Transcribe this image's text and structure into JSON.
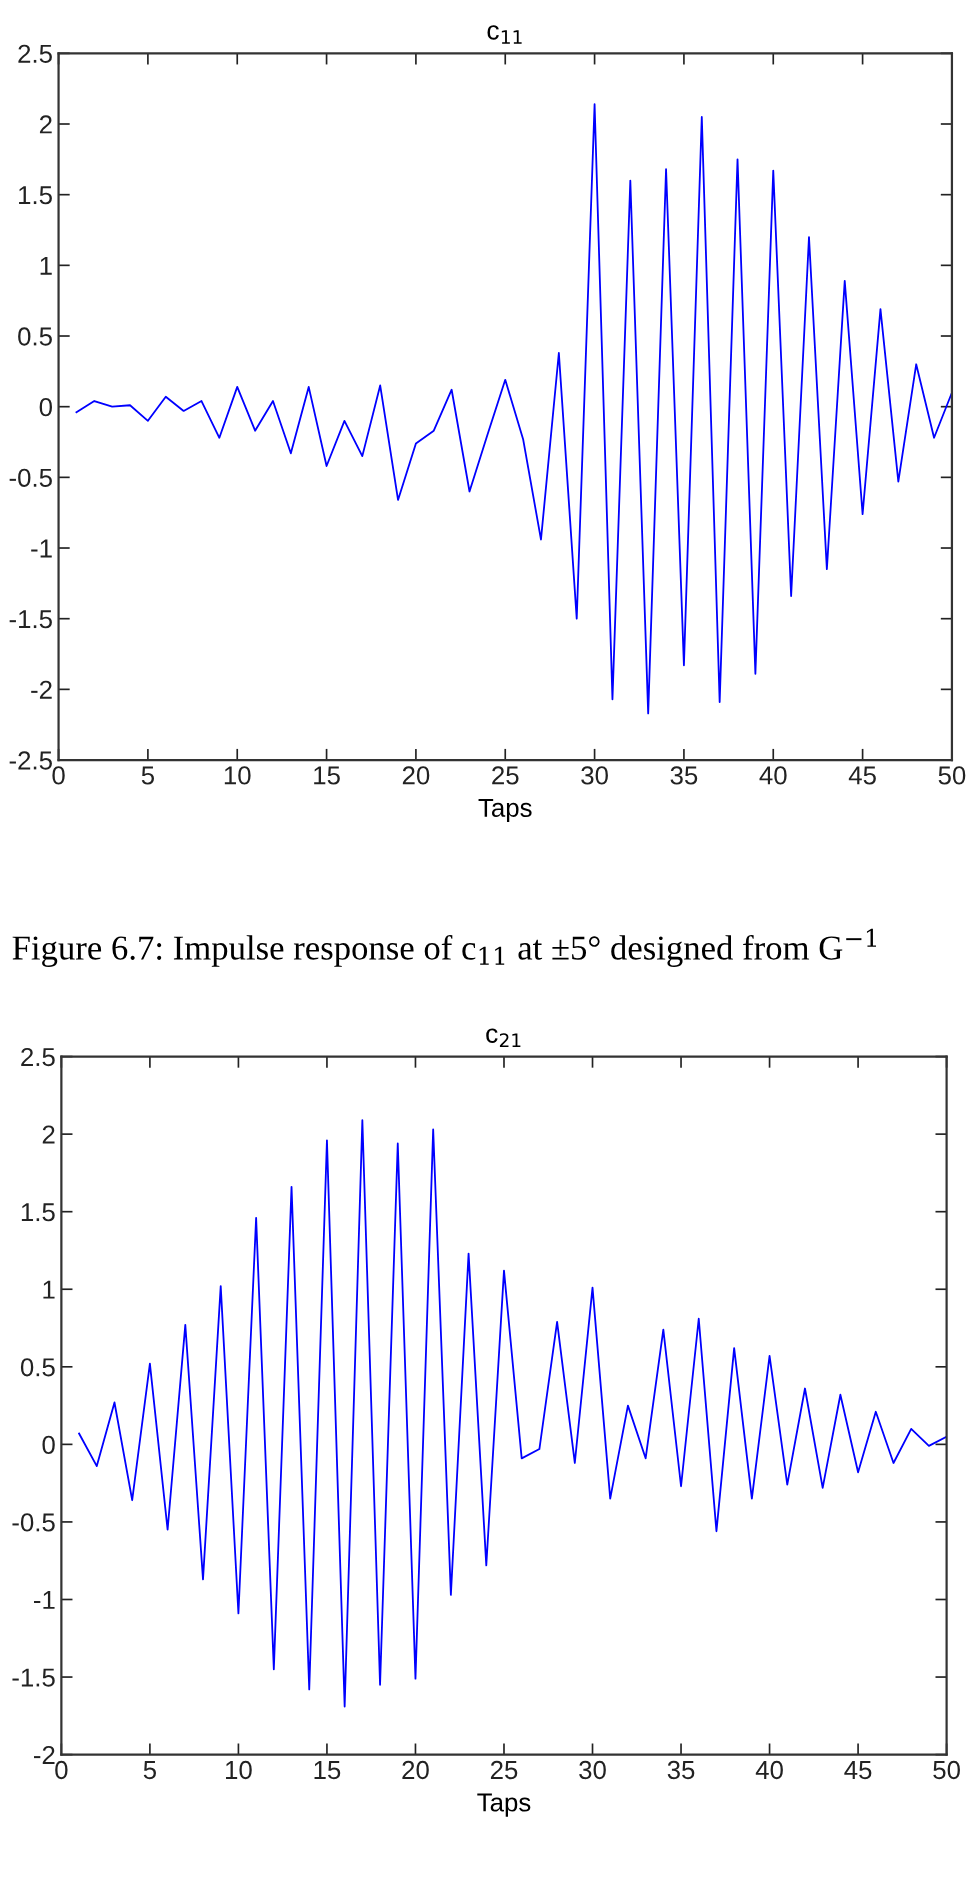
{
  "chart_data": [
    {
      "type": "line",
      "title": "c$_{11}$",
      "xlabel": "Taps",
      "x": [
        1,
        2,
        3,
        4,
        5,
        6,
        7,
        8,
        9,
        10,
        11,
        12,
        13,
        14,
        15,
        16,
        17,
        18,
        19,
        20,
        21,
        22,
        23,
        24,
        25,
        26,
        27,
        28,
        29,
        30,
        31,
        32,
        33,
        34,
        35,
        36,
        37,
        38,
        39,
        40,
        41,
        42,
        43,
        44,
        45,
        46,
        47,
        48,
        49,
        50
      ],
      "series": [
        {
          "color": "#0000ff",
          "values": [
            -0.04,
            0.04,
            0.0,
            0.01,
            -0.1,
            0.07,
            -0.03,
            0.04,
            -0.22,
            0.14,
            -0.17,
            0.04,
            -0.33,
            0.14,
            -0.42,
            -0.1,
            -0.35,
            0.15,
            -0.66,
            -0.26,
            -0.17,
            0.12,
            -0.6,
            -0.2,
            0.19,
            -0.23,
            -0.94,
            0.38,
            -1.5,
            2.14,
            -2.07,
            1.6,
            -2.17,
            1.68,
            -1.83,
            2.05,
            -2.09,
            1.75,
            -1.89,
            1.67,
            -1.34,
            1.2,
            -1.15,
            0.89,
            -0.76,
            0.69,
            -0.53,
            0.3,
            -0.22,
            0.1
          ]
        }
      ],
      "xlim": [
        0,
        50
      ],
      "ylim": [
        -2.5,
        2.5
      ],
      "xticks": [
        0,
        5,
        10,
        15,
        20,
        25,
        30,
        35,
        40,
        45,
        50
      ],
      "yticks": [
        -2.5,
        -2,
        -1.5,
        -1,
        -0.5,
        0,
        0.5,
        1,
        1.5,
        2,
        2.5
      ],
      "annotations": [
        "Figure 6.7: Impulse response of c$_{11}$ at ±5° designed from G$^{−1}$"
      ]
    },
    {
      "type": "line",
      "title": "c$_{21}$",
      "xlabel": "Taps",
      "x": [
        1,
        2,
        3,
        4,
        5,
        6,
        7,
        8,
        9,
        10,
        11,
        12,
        13,
        14,
        15,
        16,
        17,
        18,
        19,
        20,
        21,
        22,
        23,
        24,
        25,
        26,
        27,
        28,
        29,
        30,
        31,
        32,
        33,
        34,
        35,
        36,
        37,
        38,
        39,
        40,
        41,
        42,
        43,
        44,
        45,
        46,
        47,
        48,
        49,
        50
      ],
      "series": [
        {
          "color": "#0000ff",
          "values": [
            0.07,
            -0.14,
            0.27,
            -0.36,
            0.52,
            -0.55,
            0.77,
            -0.87,
            1.02,
            -1.09,
            1.46,
            -1.45,
            1.66,
            -1.58,
            1.96,
            -1.69,
            2.09,
            -1.55,
            1.94,
            -1.51,
            2.03,
            -0.97,
            1.23,
            -0.78,
            1.12,
            -0.09,
            -0.03,
            0.79,
            -0.12,
            1.01,
            -0.35,
            0.25,
            -0.09,
            0.74,
            -0.27,
            0.81,
            -0.56,
            0.62,
            -0.35,
            0.57,
            -0.26,
            0.36,
            -0.28,
            0.32,
            -0.18,
            0.21,
            -0.12,
            0.1,
            -0.01,
            0.05
          ]
        }
      ],
      "xlim": [
        0,
        50
      ],
      "ylim": [
        -2,
        2.5
      ],
      "xticks": [
        0,
        5,
        10,
        15,
        20,
        25,
        30,
        35,
        40,
        45,
        50
      ],
      "yticks": [
        -2,
        -1.5,
        -1,
        -0.5,
        0,
        0.5,
        1,
        1.5,
        2,
        2.5
      ]
    }
  ]
}
